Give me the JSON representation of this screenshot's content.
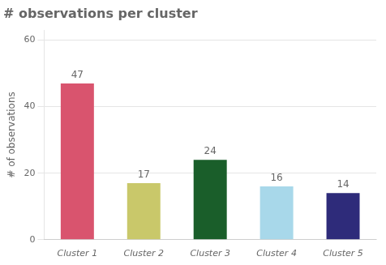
{
  "chart_data": {
    "type": "bar",
    "title": "# observations per cluster",
    "categories": [
      "Cluster 1",
      "Cluster 2",
      "Cluster 3",
      "Cluster 4",
      "Cluster 5"
    ],
    "values": [
      47,
      17,
      24,
      16,
      14
    ],
    "colors": [
      "#d9546e",
      "#c9c86a",
      "#1a5e2a",
      "#a8d8ea",
      "#2e2b7a"
    ],
    "ylabel": "# of observations",
    "ylim": [
      0,
      63
    ],
    "yticks": [
      0,
      20,
      40,
      60
    ],
    "grid": true,
    "data_labels": true
  }
}
